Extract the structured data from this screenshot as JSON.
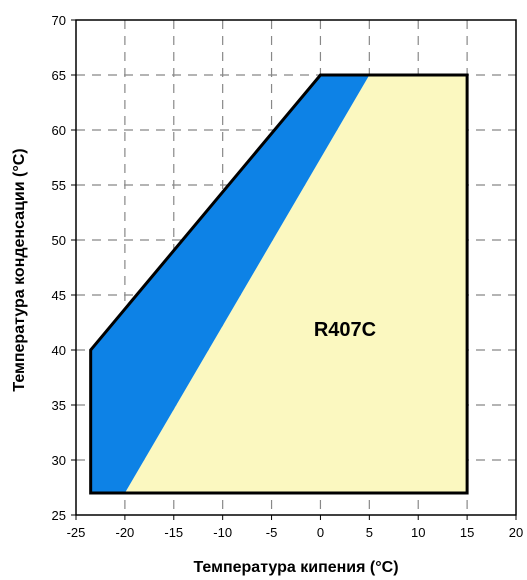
{
  "chart_data": {
    "type": "area",
    "title": "",
    "xlabel": "Температура кипения (°С)",
    "ylabel": "Температура конденсации (°С)",
    "xlim": [
      -25,
      20
    ],
    "ylim": [
      25,
      70
    ],
    "x_ticks": [
      -25,
      -20,
      -15,
      -10,
      -5,
      0,
      5,
      10,
      15,
      20
    ],
    "y_ticks": [
      25,
      30,
      35,
      40,
      45,
      50,
      55,
      60,
      65,
      70
    ],
    "grid": true,
    "annotation": "R407C",
    "regions": [
      {
        "color": "#fbf8c0",
        "points": [
          [
            -20,
            27
          ],
          [
            15,
            27
          ],
          [
            15,
            65
          ],
          [
            5,
            65
          ]
        ]
      },
      {
        "color": "#0d82e6",
        "points": [
          [
            -23.5,
            27
          ],
          [
            -20,
            27
          ],
          [
            5,
            65
          ],
          [
            0,
            65
          ],
          [
            -23.5,
            40
          ]
        ]
      }
    ],
    "outline": [
      [
        -23.5,
        27
      ],
      [
        15,
        27
      ],
      [
        15,
        65
      ],
      [
        0,
        65
      ],
      [
        -23.5,
        40
      ]
    ]
  }
}
